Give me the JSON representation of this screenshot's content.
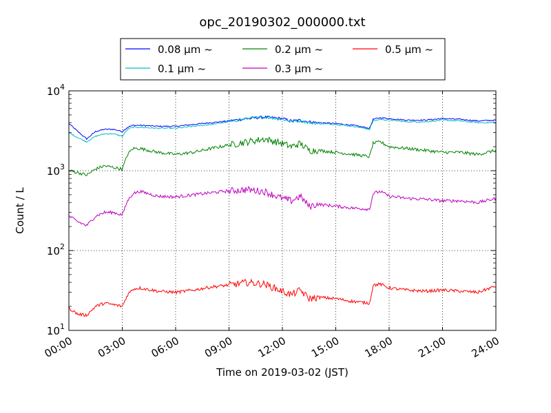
{
  "chart_data": {
    "type": "line",
    "title": "opc_20190302_000000.txt",
    "xlabel": "Time on 2019-03-02 (JST)",
    "ylabel": "Count / L",
    "y_scale": "log",
    "ylim": [
      10,
      10000
    ],
    "xlim": [
      "00:00",
      "24:00"
    ],
    "x_ticks": [
      "00:00",
      "03:00",
      "06:00",
      "09:00",
      "12:00",
      "15:00",
      "18:00",
      "21:00",
      "24:00"
    ],
    "y_ticks": [
      {
        "value": 10,
        "base": "10",
        "exp": "1"
      },
      {
        "value": 100,
        "base": "10",
        "exp": "2"
      },
      {
        "value": 1000,
        "base": "10",
        "exp": "3"
      },
      {
        "value": 10000,
        "base": "10",
        "exp": "4"
      }
    ],
    "grid": true,
    "legend_position": "top",
    "series": [
      {
        "name": "0.08 μm ~",
        "color": "#0000ff",
        "x": [
          0,
          0.5,
          1.0,
          1.5,
          2.0,
          2.5,
          3.0,
          3.3,
          3.6,
          4.0,
          5.0,
          6.0,
          7.0,
          8.0,
          9.0,
          10.0,
          11.0,
          12.0,
          12.5,
          13.0,
          13.5,
          14.0,
          15.0,
          16.0,
          16.9,
          17.1,
          17.5,
          18.0,
          19.0,
          20.0,
          21.0,
          22.0,
          23.0,
          24.0
        ],
        "y": [
          3900,
          3100,
          2500,
          3100,
          3300,
          3300,
          3100,
          3500,
          3700,
          3700,
          3600,
          3600,
          3800,
          4000,
          4200,
          4500,
          4700,
          4500,
          4200,
          4300,
          4100,
          4000,
          3900,
          3700,
          3400,
          4400,
          4600,
          4500,
          4300,
          4300,
          4500,
          4400,
          4200,
          4300
        ]
      },
      {
        "name": "0.1 μm ~",
        "color": "#00bfbf",
        "x": [
          0,
          0.5,
          1.0,
          1.5,
          2.0,
          2.5,
          3.0,
          3.3,
          3.6,
          4.0,
          5.0,
          6.0,
          7.0,
          8.0,
          9.0,
          10.0,
          11.0,
          12.0,
          12.5,
          13.0,
          13.5,
          14.0,
          15.0,
          16.0,
          16.9,
          17.1,
          17.5,
          18.0,
          19.0,
          20.0,
          21.0,
          22.0,
          23.0,
          24.0
        ],
        "y": [
          3000,
          2600,
          2300,
          2700,
          2900,
          2900,
          2700,
          3300,
          3500,
          3500,
          3400,
          3400,
          3600,
          3800,
          4100,
          4500,
          4700,
          4400,
          4100,
          4200,
          4000,
          3900,
          3800,
          3600,
          3300,
          4200,
          4400,
          4300,
          4100,
          4100,
          4300,
          4200,
          4000,
          4000
        ]
      },
      {
        "name": "0.2 μm ~",
        "color": "#008000",
        "x": [
          0,
          0.5,
          1.0,
          1.5,
          2.0,
          2.5,
          3.0,
          3.3,
          3.6,
          4.0,
          5.0,
          6.0,
          7.0,
          8.0,
          9.0,
          10.0,
          11.0,
          12.0,
          12.5,
          13.0,
          13.5,
          14.0,
          15.0,
          16.0,
          16.9,
          17.1,
          17.5,
          18.0,
          19.0,
          20.0,
          21.0,
          22.0,
          23.0,
          24.0
        ],
        "y": [
          1000,
          950,
          880,
          1050,
          1150,
          1100,
          1050,
          1600,
          1900,
          1900,
          1700,
          1600,
          1700,
          1900,
          2100,
          2300,
          2500,
          2200,
          2000,
          2200,
          1800,
          1800,
          1700,
          1600,
          1500,
          2200,
          2300,
          2000,
          1900,
          1800,
          1700,
          1700,
          1600,
          1800
        ]
      },
      {
        "name": "0.3 μm ~",
        "color": "#bf00bf",
        "x": [
          0,
          0.5,
          1.0,
          1.5,
          2.0,
          2.5,
          3.0,
          3.3,
          3.6,
          4.0,
          5.0,
          6.0,
          7.0,
          8.0,
          9.0,
          10.0,
          11.0,
          12.0,
          12.5,
          13.0,
          13.5,
          14.0,
          15.0,
          16.0,
          16.9,
          17.1,
          17.5,
          18.0,
          19.0,
          20.0,
          21.0,
          22.0,
          23.0,
          24.0
        ],
        "y": [
          270,
          230,
          205,
          270,
          300,
          300,
          280,
          420,
          520,
          550,
          480,
          470,
          500,
          530,
          560,
          580,
          550,
          450,
          420,
          480,
          360,
          380,
          360,
          340,
          330,
          520,
          550,
          480,
          450,
          440,
          420,
          420,
          400,
          450
        ]
      },
      {
        "name": "0.5 μm ~",
        "color": "#ff0000",
        "x": [
          0,
          0.5,
          1.0,
          1.5,
          2.0,
          2.5,
          3.0,
          3.3,
          3.6,
          4.0,
          5.0,
          6.0,
          7.0,
          8.0,
          9.0,
          10.0,
          11.0,
          12.0,
          12.5,
          13.0,
          13.5,
          14.0,
          15.0,
          16.0,
          16.9,
          17.1,
          17.5,
          18.0,
          19.0,
          20.0,
          21.0,
          22.0,
          23.0,
          24.0
        ],
        "y": [
          19,
          16,
          15.5,
          20,
          22,
          21,
          20,
          28,
          33,
          34,
          31,
          30,
          32,
          35,
          37,
          40,
          38,
          31,
          28,
          32,
          25,
          26,
          25,
          23,
          22,
          37,
          38,
          34,
          32,
          31,
          32,
          31,
          30,
          36
        ]
      }
    ]
  }
}
